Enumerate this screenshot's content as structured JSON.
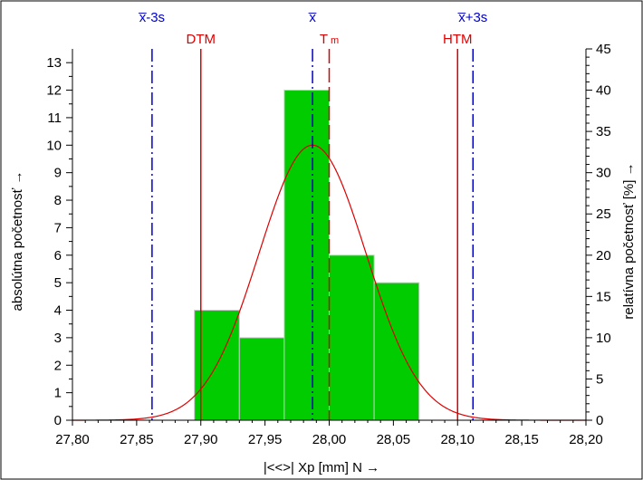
{
  "chart_data": {
    "type": "bar",
    "x_axis": {
      "label": "|<<>|  Xp [mm]  N →",
      "range": [
        27.8,
        28.2
      ],
      "ticks": [
        27.8,
        27.85,
        27.9,
        27.95,
        28.0,
        28.05,
        28.1,
        28.15,
        28.2
      ],
      "tick_labels": [
        "27,80",
        "27,85",
        "27,90",
        "27,95",
        "28,00",
        "28,05",
        "28,10",
        "28,15",
        "28,20"
      ]
    },
    "y_axis_left": {
      "label": "absolútna početnosť →",
      "range": [
        0,
        13.5
      ],
      "ticks": [
        0,
        1,
        2,
        3,
        4,
        5,
        6,
        7,
        8,
        9,
        10,
        11,
        12,
        13
      ]
    },
    "y_axis_right": {
      "label": "relatívna početnosť  [%] →",
      "range": [
        0,
        45
      ],
      "ticks": [
        0,
        5,
        10,
        15,
        20,
        25,
        30,
        35,
        40,
        45
      ]
    },
    "bars": [
      {
        "x0": 27.895,
        "x1": 27.93,
        "value": 4
      },
      {
        "x0": 27.93,
        "x1": 27.965,
        "value": 3
      },
      {
        "x0": 27.965,
        "x1": 28.0,
        "value": 12
      },
      {
        "x0": 28.0,
        "x1": 28.035,
        "value": 6
      },
      {
        "x0": 28.035,
        "x1": 28.07,
        "value": 5
      }
    ],
    "normal_curve": {
      "mean": 27.987,
      "sigma": 0.0417,
      "peak": 10.0,
      "color": "#dd0000"
    },
    "reference_lines": [
      {
        "id": "mean-minus-3s",
        "label_pre": "x̅",
        "label_post": "-3s",
        "x": 27.862,
        "color": "#0000cc",
        "style": "dashdot"
      },
      {
        "id": "dtm",
        "label_pre": "DTM",
        "label_post": "",
        "x": 27.9,
        "color": "#dd0000",
        "style": "solid"
      },
      {
        "id": "mean",
        "label_pre": "x̅",
        "label_post": "",
        "x": 27.987,
        "color": "#0000cc",
        "style": "dashdot"
      },
      {
        "id": "tm",
        "label_pre": "T",
        "label_post": "m",
        "x": 28.0,
        "color": "#dd0000",
        "style": "dashed"
      },
      {
        "id": "htm",
        "label_pre": "HTM",
        "label_post": "",
        "x": 28.1,
        "color": "#dd0000",
        "style": "solid"
      },
      {
        "id": "mean-plus-3s",
        "label_pre": "x̅",
        "label_post": "+3s",
        "x": 28.112,
        "color": "#0000cc",
        "style": "dashdot"
      }
    ],
    "colors": {
      "bar_fill": "#00cc00",
      "bar_stroke": "#c8c8c8",
      "axis": "#000000"
    },
    "grid": false
  }
}
